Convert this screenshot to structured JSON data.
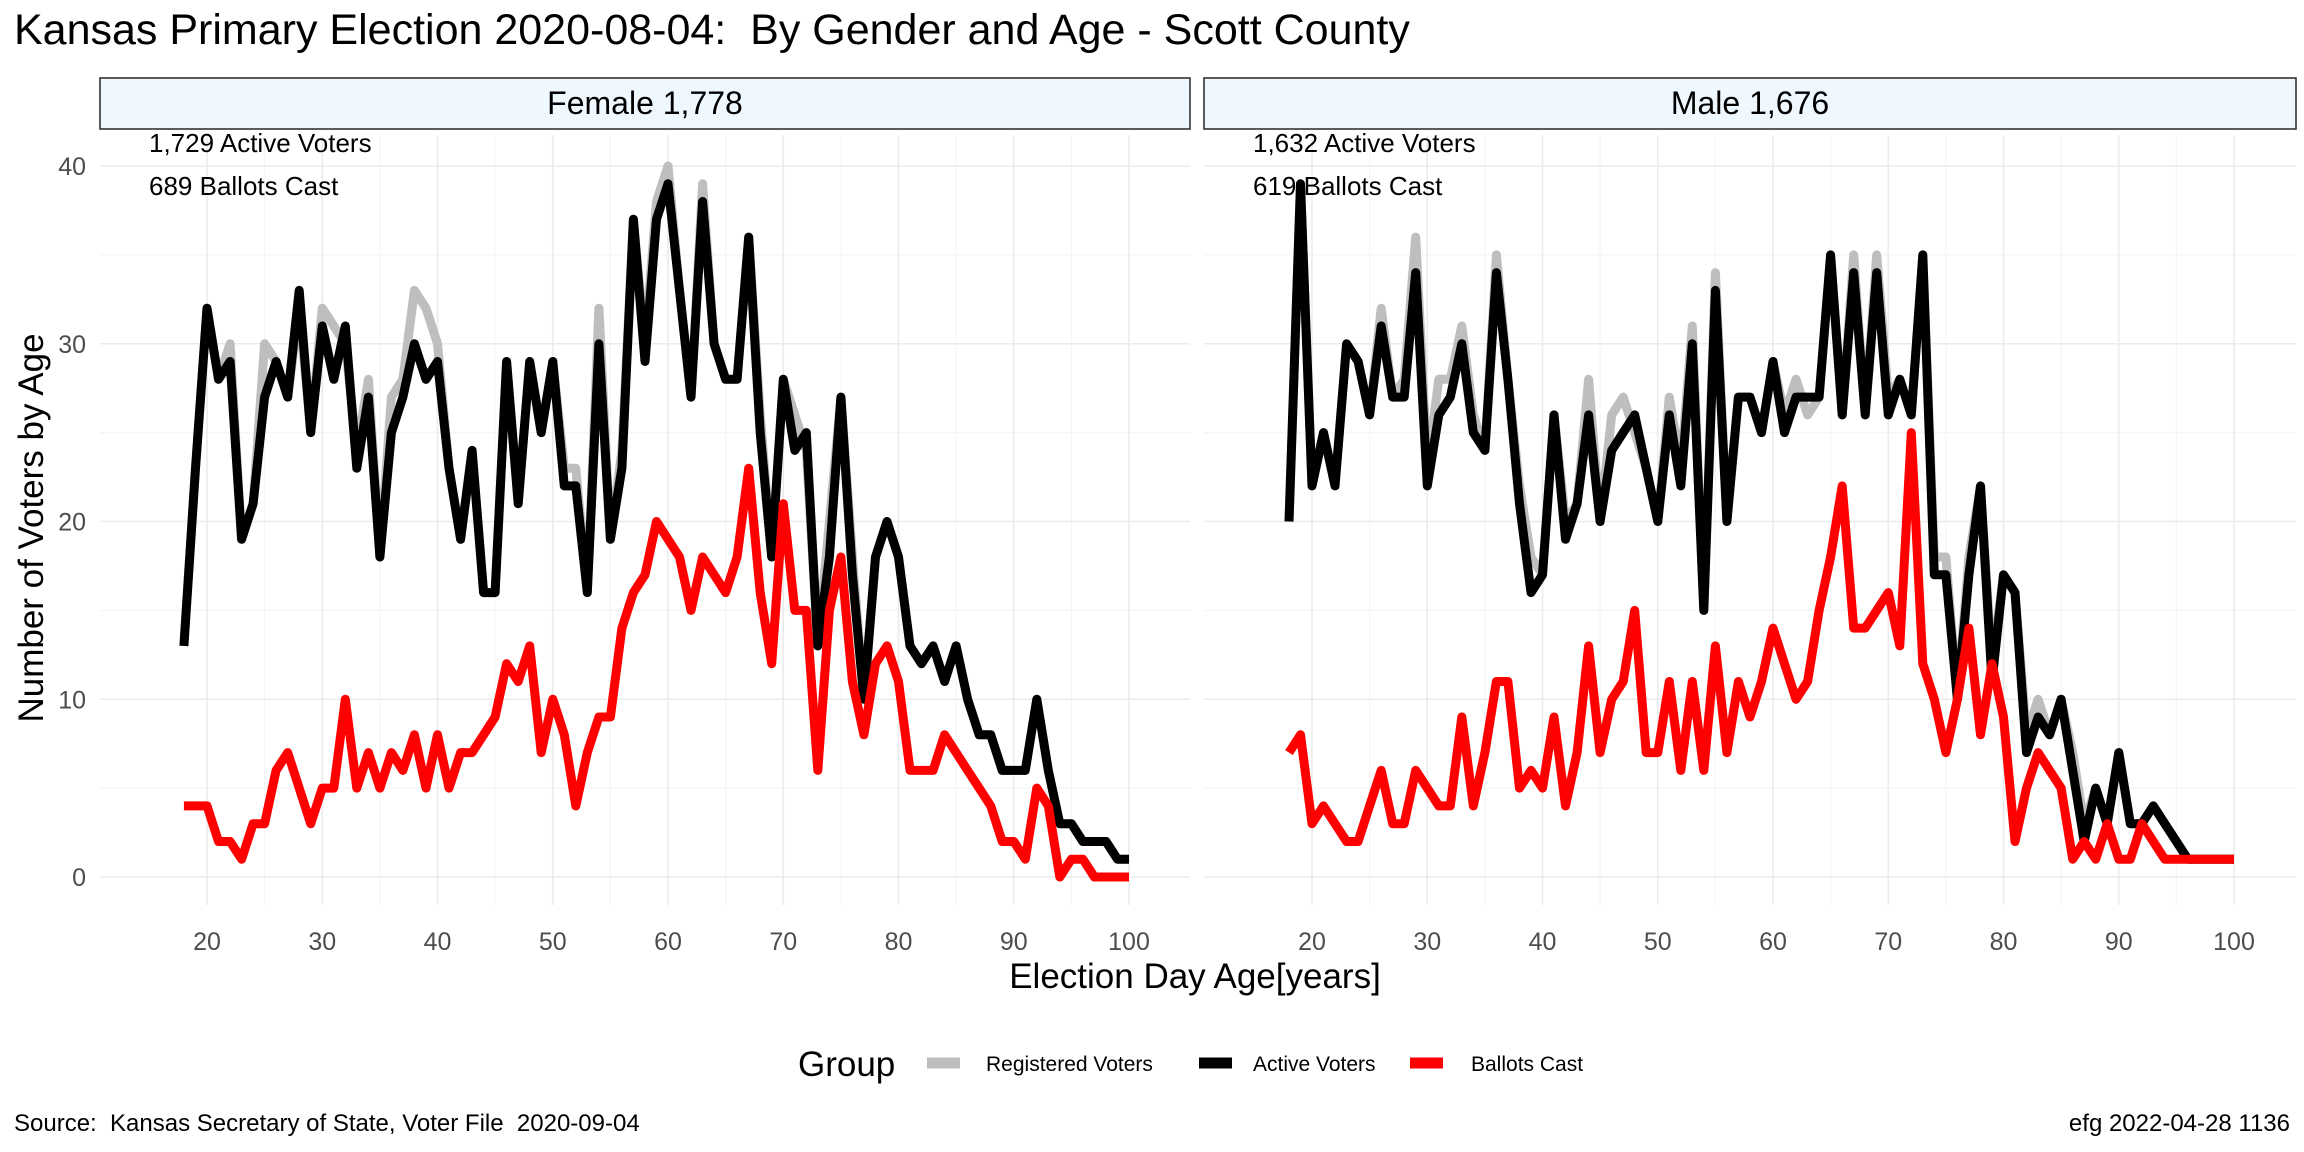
{
  "title": "Kansas Primary Election 2020-08-04:  By Gender and Age - Scott County",
  "source": "Source:  Kansas Secretary of State, Voter File  2020-09-04",
  "stamp": "efg 2022-04-28 1136",
  "colors": {
    "registered": "#bebebe",
    "active": "#000000",
    "ballots": "#ff0000",
    "strip_fill": "#f0f8ff",
    "grid": "#ebebeb"
  },
  "chart_data": {
    "type": "line",
    "xlabel": "Election Day Age[years]",
    "ylabel": "Number of Voters by Age",
    "xlim": [
      16,
      102
    ],
    "ylim": [
      0,
      40
    ],
    "x_ticks": [
      20,
      30,
      40,
      50,
      60,
      70,
      80,
      90,
      100
    ],
    "y_ticks": [
      0,
      10,
      20,
      30,
      40
    ],
    "grid": true,
    "legend": {
      "title": "Group",
      "position": "bottom",
      "entries": [
        "Registered Voters",
        "Active Voters",
        "Ballots Cast"
      ]
    },
    "panels": [
      {
        "strip": "Female 1,778",
        "annotations": [
          "1,729 Active Voters",
          "689 Ballots Cast"
        ],
        "series": [
          {
            "name": "Registered Voters",
            "x": [
              18,
              19,
              20,
              21,
              22,
              23,
              24,
              25,
              26,
              27,
              28,
              29,
              30,
              31,
              32,
              33,
              34,
              35,
              36,
              37,
              38,
              39,
              40,
              41,
              42,
              43,
              44,
              45,
              46,
              47,
              48,
              49,
              50,
              51,
              52,
              53,
              54,
              55,
              56,
              57,
              58,
              59,
              60,
              61,
              62,
              63,
              64,
              65,
              66,
              67,
              68,
              69,
              70,
              71,
              72,
              73,
              74,
              75,
              76,
              77,
              78,
              79,
              80,
              81,
              82,
              83,
              84,
              85,
              86,
              87,
              88,
              89,
              90,
              91,
              92,
              93,
              94,
              95,
              96,
              97,
              98,
              99,
              100
            ],
            "y": [
              13,
              23,
              32,
              28,
              30,
              19,
              21,
              30,
              29,
              27,
              32,
              25,
              32,
              31,
              30,
              24,
              28,
              18,
              27,
              28,
              33,
              32,
              30,
              23,
              19,
              24,
              16,
              16,
              29,
              21,
              29,
              25,
              29,
              23,
              23,
              16,
              32,
              19,
              24,
              37,
              30,
              38,
              40,
              33,
              27,
              39,
              30,
              28,
              28,
              36,
              26,
              18,
              28,
              26,
              24,
              13,
              20,
              27,
              18,
              10,
              18,
              20,
              18,
              13,
              12,
              13,
              11,
              13,
              10,
              8,
              8,
              6,
              6,
              6,
              10,
              6,
              3,
              3,
              2,
              2,
              2,
              1,
              1
            ]
          },
          {
            "name": "Active Voters",
            "x": [
              18,
              19,
              20,
              21,
              22,
              23,
              24,
              25,
              26,
              27,
              28,
              29,
              30,
              31,
              32,
              33,
              34,
              35,
              36,
              37,
              38,
              39,
              40,
              41,
              42,
              43,
              44,
              45,
              46,
              47,
              48,
              49,
              50,
              51,
              52,
              53,
              54,
              55,
              56,
              57,
              58,
              59,
              60,
              61,
              62,
              63,
              64,
              65,
              66,
              67,
              68,
              69,
              70,
              71,
              72,
              73,
              74,
              75,
              76,
              77,
              78,
              79,
              80,
              81,
              82,
              83,
              84,
              85,
              86,
              87,
              88,
              89,
              90,
              91,
              92,
              93,
              94,
              95,
              96,
              97,
              98,
              99,
              100
            ],
            "y": [
              13,
              23,
              32,
              28,
              29,
              19,
              21,
              27,
              29,
              27,
              33,
              25,
              31,
              28,
              31,
              23,
              27,
              18,
              25,
              27,
              30,
              28,
              29,
              23,
              19,
              24,
              16,
              16,
              29,
              21,
              29,
              25,
              29,
              22,
              22,
              16,
              30,
              19,
              23,
              37,
              29,
              37,
              39,
              33,
              27,
              38,
              30,
              28,
              28,
              36,
              25,
              18,
              28,
              24,
              25,
              13,
              18,
              27,
              17,
              10,
              18,
              20,
              18,
              13,
              12,
              13,
              11,
              13,
              10,
              8,
              8,
              6,
              6,
              6,
              10,
              6,
              3,
              3,
              2,
              2,
              2,
              1,
              1
            ]
          },
          {
            "name": "Ballots Cast",
            "x": [
              18,
              19,
              20,
              21,
              22,
              23,
              24,
              25,
              26,
              27,
              28,
              29,
              30,
              31,
              32,
              33,
              34,
              35,
              36,
              37,
              38,
              39,
              40,
              41,
              42,
              43,
              44,
              45,
              46,
              47,
              48,
              49,
              50,
              51,
              52,
              53,
              54,
              55,
              56,
              57,
              58,
              59,
              60,
              61,
              62,
              63,
              64,
              65,
              66,
              67,
              68,
              69,
              70,
              71,
              72,
              73,
              74,
              75,
              76,
              77,
              78,
              79,
              80,
              81,
              82,
              83,
              84,
              85,
              86,
              87,
              88,
              89,
              90,
              91,
              92,
              93,
              94,
              95,
              96,
              97,
              98,
              99,
              100
            ],
            "y": [
              4,
              4,
              4,
              2,
              2,
              1,
              3,
              3,
              6,
              7,
              5,
              3,
              5,
              5,
              10,
              5,
              7,
              5,
              7,
              6,
              8,
              5,
              8,
              5,
              7,
              7,
              8,
              9,
              12,
              11,
              13,
              7,
              10,
              8,
              4,
              7,
              9,
              9,
              14,
              16,
              17,
              20,
              19,
              18,
              15,
              18,
              17,
              16,
              18,
              23,
              16,
              12,
              21,
              15,
              15,
              6,
              15,
              18,
              11,
              8,
              12,
              13,
              11,
              6,
              6,
              6,
              8,
              7,
              6,
              5,
              4,
              2,
              2,
              1,
              5,
              4,
              0,
              1,
              1,
              0,
              0,
              0,
              0
            ]
          }
        ]
      },
      {
        "strip": "Male 1,676",
        "annotations": [
          "1,632 Active Voters",
          "619 Ballots Cast"
        ],
        "series": [
          {
            "name": "Registered Voters",
            "x": [
              18,
              19,
              20,
              21,
              22,
              23,
              24,
              25,
              26,
              27,
              28,
              29,
              30,
              31,
              32,
              33,
              34,
              35,
              36,
              37,
              38,
              39,
              40,
              41,
              42,
              43,
              44,
              45,
              46,
              47,
              48,
              49,
              50,
              51,
              52,
              53,
              54,
              55,
              56,
              57,
              58,
              59,
              60,
              61,
              62,
              63,
              64,
              65,
              66,
              67,
              68,
              69,
              70,
              71,
              72,
              73,
              74,
              75,
              76,
              77,
              78,
              79,
              80,
              81,
              82,
              83,
              84,
              85,
              86,
              87,
              88,
              89,
              90,
              91,
              92,
              93,
              94,
              95,
              96,
              97,
              98,
              99,
              100
            ],
            "y": [
              20,
              39,
              22,
              25,
              22,
              30,
              29,
              26,
              32,
              27,
              28,
              36,
              23,
              28,
              28,
              31,
              26,
              24,
              35,
              28,
              22,
              18,
              17,
              26,
              20,
              21,
              28,
              20,
              26,
              27,
              25,
              23,
              20,
              27,
              23,
              31,
              15,
              34,
              20,
              27,
              27,
              25,
              29,
              26,
              28,
              26,
              27,
              35,
              26,
              35,
              26,
              35,
              27,
              28,
              26,
              35,
              18,
              18,
              10,
              18,
              22,
              12,
              17,
              16,
              8,
              10,
              8,
              10,
              7,
              3,
              5,
              3,
              7,
              3,
              3,
              4,
              3,
              2,
              1,
              1,
              1,
              1,
              1
            ]
          },
          {
            "name": "Active Voters",
            "x": [
              18,
              19,
              20,
              21,
              22,
              23,
              24,
              25,
              26,
              27,
              28,
              29,
              30,
              31,
              32,
              33,
              34,
              35,
              36,
              37,
              38,
              39,
              40,
              41,
              42,
              43,
              44,
              45,
              46,
              47,
              48,
              49,
              50,
              51,
              52,
              53,
              54,
              55,
              56,
              57,
              58,
              59,
              60,
              61,
              62,
              63,
              64,
              65,
              66,
              67,
              68,
              69,
              70,
              71,
              72,
              73,
              74,
              75,
              76,
              77,
              78,
              79,
              80,
              81,
              82,
              83,
              84,
              85,
              86,
              87,
              88,
              89,
              90,
              91,
              92,
              93,
              94,
              95,
              96,
              97,
              98,
              99,
              100
            ],
            "y": [
              20,
              39,
              22,
              25,
              22,
              30,
              29,
              26,
              31,
              27,
              27,
              34,
              22,
              26,
              27,
              30,
              25,
              24,
              34,
              28,
              21,
              16,
              17,
              26,
              19,
              21,
              26,
              20,
              24,
              25,
              26,
              23,
              20,
              26,
              22,
              30,
              15,
              33,
              20,
              27,
              27,
              25,
              29,
              25,
              27,
              27,
              27,
              35,
              26,
              34,
              26,
              34,
              26,
              28,
              26,
              35,
              17,
              17,
              10,
              17,
              22,
              11,
              17,
              16,
              7,
              9,
              8,
              10,
              6,
              2,
              5,
              3,
              7,
              3,
              3,
              4,
              3,
              2,
              1,
              1,
              1,
              1,
              1
            ]
          },
          {
            "name": "Ballots Cast",
            "x": [
              18,
              19,
              20,
              21,
              22,
              23,
              24,
              25,
              26,
              27,
              28,
              29,
              30,
              31,
              32,
              33,
              34,
              35,
              36,
              37,
              38,
              39,
              40,
              41,
              42,
              43,
              44,
              45,
              46,
              47,
              48,
              49,
              50,
              51,
              52,
              53,
              54,
              55,
              56,
              57,
              58,
              59,
              60,
              61,
              62,
              63,
              64,
              65,
              66,
              67,
              68,
              69,
              70,
              71,
              72,
              73,
              74,
              75,
              76,
              77,
              78,
              79,
              80,
              81,
              82,
              83,
              84,
              85,
              86,
              87,
              88,
              89,
              90,
              91,
              92,
              93,
              94,
              95,
              96,
              97,
              98,
              99,
              100
            ],
            "y": [
              7,
              8,
              3,
              4,
              3,
              2,
              2,
              4,
              6,
              3,
              3,
              6,
              5,
              4,
              4,
              9,
              4,
              7,
              11,
              11,
              5,
              6,
              5,
              9,
              4,
              7,
              13,
              7,
              10,
              11,
              15,
              7,
              7,
              11,
              6,
              11,
              6,
              13,
              7,
              11,
              9,
              11,
              14,
              12,
              10,
              11,
              15,
              18,
              22,
              14,
              14,
              15,
              16,
              13,
              25,
              12,
              10,
              7,
              10,
              14,
              8,
              12,
              9,
              2,
              5,
              7,
              6,
              5,
              1,
              2,
              1,
              3,
              1,
              1,
              3,
              2,
              1,
              1,
              1,
              1,
              1,
              1,
              1
            ]
          }
        ]
      }
    ]
  }
}
